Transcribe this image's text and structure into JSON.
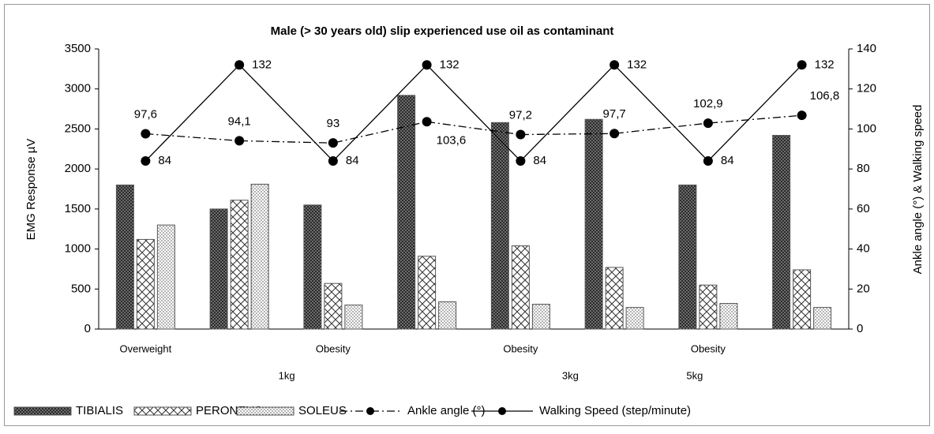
{
  "chart_data": {
    "type": "bar_line",
    "title": "Male (> 30 years old) slip experienced use oil as contaminant",
    "y_label": "EMG Response µV",
    "y2_label": "Ankle angle (°) & Walking speed",
    "categories": [
      "Overweight",
      null,
      "Obesity",
      null,
      "Obesity",
      null,
      "Obesity",
      null
    ],
    "categories_2": [
      null,
      "1kg",
      null,
      null,
      "3kg",
      null,
      "5kg",
      null
    ],
    "ylim": [
      0,
      3500
    ],
    "yticks": [
      0,
      500,
      1000,
      1500,
      2000,
      2500,
      3000,
      3500
    ],
    "y2lim": [
      0,
      140
    ],
    "y2ticks": [
      0,
      20,
      40,
      60,
      80,
      100,
      120,
      140
    ],
    "series": [
      {
        "name": "TIBIALIS",
        "kind": "bar",
        "color": "#555555",
        "values": [
          1800,
          1500,
          1550,
          2920,
          2580,
          2620,
          1800,
          2420
        ]
      },
      {
        "name": "PERONEUS",
        "kind": "bar",
        "color": "#555555",
        "values": [
          1120,
          1610,
          570,
          910,
          1040,
          770,
          550,
          740
        ]
      },
      {
        "name": "SOLEUS",
        "kind": "bar",
        "color": "#555555",
        "values": [
          1300,
          1810,
          300,
          340,
          310,
          270,
          320,
          270
        ]
      },
      {
        "name": "Ankle angle (°)",
        "kind": "line",
        "dash": "dashdot",
        "axis": "y2",
        "color": "#000000",
        "values": [
          97.6,
          94.1,
          93,
          103.6,
          97.2,
          97.7,
          102.9,
          106.8
        ],
        "value_labels": [
          "97,6",
          "94,1",
          "93",
          "103,6",
          "97,2",
          "97,7",
          "102,9",
          "106,8"
        ]
      },
      {
        "name": "Walking Speed (step/minute)",
        "kind": "line",
        "dash": "solid",
        "axis": "y2",
        "color": "#000000",
        "values": [
          84,
          132,
          84,
          132,
          84,
          132,
          84,
          132
        ]
      }
    ]
  }
}
